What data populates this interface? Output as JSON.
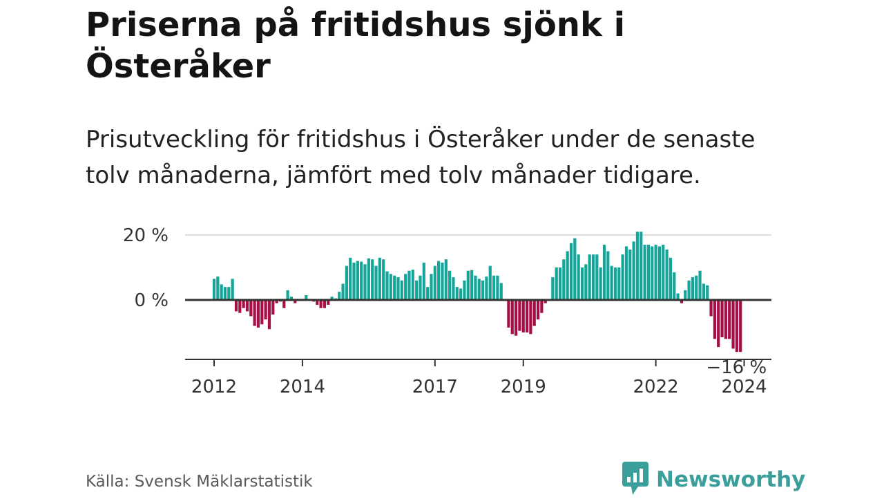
{
  "title": "Priserna på fritidshus sjönk i Österåker",
  "subtitle": "Prisutveckling för fritidshus i Österåker under de senaste tolv månaderna, jämfört med tolv månader tidigare.",
  "source": "Källa: Svensk Mäklarstatistik",
  "brand": {
    "name": "Newsworthy",
    "icon": "newsworthy-logo-icon"
  },
  "colors": {
    "positive": "#15a59a",
    "negative": "#a50f45",
    "grid": "#dddddd",
    "axis": "#333333",
    "brand": "#3a9f9a"
  },
  "chart_data": {
    "type": "bar",
    "title": "Priserna på fritidshus sjönk i Österåker",
    "xlabel": "",
    "ylabel": "",
    "unit": "%",
    "ylim": [
      -18,
      20
    ],
    "y_ticks": [
      {
        "value": 0,
        "label": "0 %"
      },
      {
        "value": 20,
        "label": "20 %"
      }
    ],
    "x_ticks": [
      {
        "index": 0,
        "label": "2012"
      },
      {
        "index": 24,
        "label": "2014"
      },
      {
        "index": 60,
        "label": "2017"
      },
      {
        "index": 84,
        "label": "2019"
      },
      {
        "index": 120,
        "label": "2022"
      },
      {
        "index": 144,
        "label": "2024"
      }
    ],
    "annotation": {
      "text": "−16 %",
      "index": 143
    },
    "start": "2012-01",
    "values": [
      6.5,
      7.2,
      4.8,
      4,
      4,
      6.5,
      -3.5,
      -4,
      -2.5,
      -3.5,
      -5,
      -8,
      -8.5,
      -7.5,
      -6,
      -9,
      -4.5,
      -1,
      -0.5,
      -2.5,
      3,
      1,
      -1,
      0,
      0,
      1.5,
      0,
      -0.5,
      -1.5,
      -2.5,
      -2.5,
      -1.5,
      1,
      0.5,
      2.5,
      5,
      10.5,
      13,
      11.5,
      12,
      11.8,
      11,
      12.8,
      12.5,
      10.5,
      13,
      12.5,
      8.8,
      8,
      7.5,
      7,
      6,
      8,
      9,
      9.3,
      6,
      7.5,
      11.5,
      4,
      8,
      10.5,
      12,
      11.5,
      12.5,
      9,
      7,
      4,
      3.5,
      6,
      9,
      9.2,
      7.5,
      6.5,
      6,
      7.2,
      10.5,
      7.5,
      7.5,
      5.2,
      0,
      -8.5,
      -10.5,
      -11,
      -9.5,
      -10,
      -10,
      -10.5,
      -8,
      -6,
      -4,
      -1,
      0,
      7,
      10,
      10,
      12.5,
      15,
      17.5,
      19,
      14,
      10,
      11,
      14,
      14,
      14,
      10,
      17,
      15,
      10.5,
      10,
      10,
      14,
      16.5,
      15.5,
      18,
      21,
      21,
      17,
      17,
      16.5,
      17,
      16.5,
      17,
      15.5,
      13,
      8.5,
      2,
      -1,
      3,
      6,
      7,
      7.5,
      9,
      5,
      4.5,
      -5,
      -12,
      -14.5,
      -11.5,
      -12,
      -12,
      -15,
      -16,
      -16
    ]
  }
}
